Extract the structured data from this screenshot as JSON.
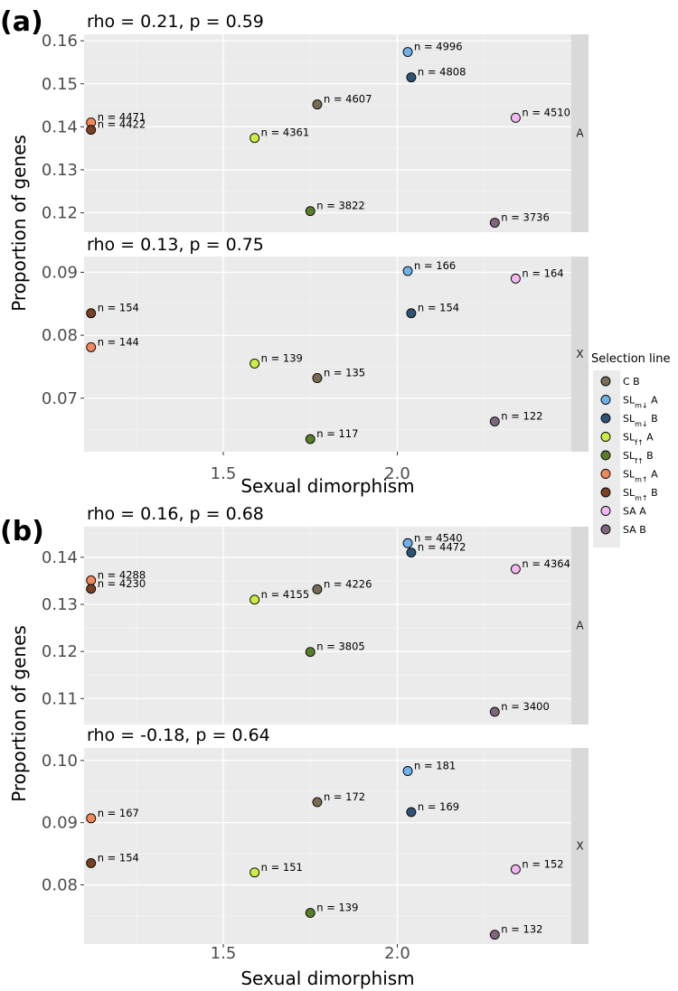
{
  "legend": {
    "title": "Selection line",
    "entries": [
      {
        "key": "CB",
        "base": "C B",
        "sub": "",
        "rest": "",
        "color": "#7b6b52"
      },
      {
        "key": "SLmdA",
        "base": "SL",
        "sub": "m↓",
        "rest": " A",
        "color": "#6fb1e8"
      },
      {
        "key": "SLmdB",
        "base": "SL",
        "sub": "m↓",
        "rest": " B",
        "color": "#2e5374"
      },
      {
        "key": "SLfuA",
        "base": "SL",
        "sub": "f↑",
        "rest": " A",
        "color": "#c9ef43"
      },
      {
        "key": "SLfuB",
        "base": "SL",
        "sub": "f↑",
        "rest": " B",
        "color": "#5a7d2a"
      },
      {
        "key": "SLmuA",
        "base": "SL",
        "sub": "m↑",
        "rest": " A",
        "color": "#f4885a"
      },
      {
        "key": "SLmuB",
        "base": "SL",
        "sub": "m↑",
        "rest": " B",
        "color": "#7a4023"
      },
      {
        "key": "SAA",
        "base": "SA A",
        "sub": "",
        "rest": "",
        "color": "#f4b6f0"
      },
      {
        "key": "SAB",
        "base": "SA B",
        "sub": "",
        "rest": "",
        "color": "#80657e"
      }
    ]
  },
  "chart_data": [
    {
      "type": "scatter",
      "label": "(a)",
      "xlabel": "Sexual dimorphism",
      "ylabel": "Proportion of genes",
      "xlim": [
        1.1,
        2.5
      ],
      "xticks": [
        1.5,
        2.0
      ],
      "xtick_labels": [
        "1.5",
        "2.0"
      ],
      "points_x": {
        "CB": 1.77,
        "SLmdA": 2.03,
        "SLmdB": 2.04,
        "SLfuA": 1.59,
        "SLfuB": 1.75,
        "SLmuA": 1.12,
        "SLmuB": 1.12,
        "SAA": 2.34,
        "SAB": 2.28
      },
      "facets": [
        {
          "strip": "A",
          "title": "rho = 0.21, p = 0.59",
          "ylim": [
            0.1155,
            0.1615
          ],
          "yticks": [
            0.12,
            0.13,
            0.14,
            0.15,
            0.16
          ],
          "ytick_labels": [
            "0.12",
            "0.13",
            "0.14",
            "0.15",
            "0.16"
          ],
          "points": [
            {
              "key": "CB",
              "y": 0.1452,
              "label": "n = 4607"
            },
            {
              "key": "SLmdA",
              "y": 0.1574,
              "label": "n = 4996"
            },
            {
              "key": "SLmdB",
              "y": 0.1515,
              "label": "n = 4808"
            },
            {
              "key": "SLfuA",
              "y": 0.1374,
              "label": "n = 4361"
            },
            {
              "key": "SLfuB",
              "y": 0.1204,
              "label": "n = 3822"
            },
            {
              "key": "SLmuA",
              "y": 0.141,
              "label": "n = 4471"
            },
            {
              "key": "SLmuB",
              "y": 0.1393,
              "label": "n = 4422"
            },
            {
              "key": "SAA",
              "y": 0.1421,
              "label": "n = 4510"
            },
            {
              "key": "SAB",
              "y": 0.1177,
              "label": "n = 3736"
            }
          ]
        },
        {
          "strip": "X",
          "title": "rho = 0.13, p = 0.75",
          "ylim": [
            0.0615,
            0.0925
          ],
          "yticks": [
            0.07,
            0.08,
            0.09
          ],
          "ytick_labels": [
            "0.07",
            "0.08",
            "0.09"
          ],
          "points": [
            {
              "key": "CB",
              "y": 0.0732,
              "label": "n = 135"
            },
            {
              "key": "SLmdA",
              "y": 0.0902,
              "label": "n = 166"
            },
            {
              "key": "SLmdB",
              "y": 0.0835,
              "label": "n = 154"
            },
            {
              "key": "SLfuA",
              "y": 0.0755,
              "label": "n = 139"
            },
            {
              "key": "SLfuB",
              "y": 0.0635,
              "label": "n = 117"
            },
            {
              "key": "SLmuA",
              "y": 0.0781,
              "label": "n = 144"
            },
            {
              "key": "SLmuB",
              "y": 0.0835,
              "label": "n = 154"
            },
            {
              "key": "SAA",
              "y": 0.089,
              "label": "n = 164"
            },
            {
              "key": "SAB",
              "y": 0.0663,
              "label": "n = 122"
            }
          ]
        }
      ]
    },
    {
      "type": "scatter",
      "label": "(b)",
      "xlabel": "Sexual dimorphism",
      "ylabel": "Proportion of genes",
      "xlim": [
        1.1,
        2.5
      ],
      "xticks": [
        1.5,
        2.0
      ],
      "xtick_labels": [
        "1.5",
        "2.0"
      ],
      "points_x": {
        "CB": 1.77,
        "SLmdA": 2.03,
        "SLmdB": 2.04,
        "SLfuA": 1.59,
        "SLfuB": 1.75,
        "SLmuA": 1.12,
        "SLmuB": 1.12,
        "SAA": 2.34,
        "SAB": 2.28
      },
      "facets": [
        {
          "strip": "A",
          "title": "rho = 0.16, p = 0.68",
          "ylim": [
            0.1045,
            0.1465
          ],
          "yticks": [
            0.11,
            0.12,
            0.13,
            0.14
          ],
          "ytick_labels": [
            "0.11",
            "0.12",
            "0.13",
            "0.14"
          ],
          "points": [
            {
              "key": "CB",
              "y": 0.1332,
              "label": "n = 4226"
            },
            {
              "key": "SLmdA",
              "y": 0.143,
              "label": "n = 4540"
            },
            {
              "key": "SLmdB",
              "y": 0.141,
              "label": "n = 4472"
            },
            {
              "key": "SLfuA",
              "y": 0.131,
              "label": "n = 4155"
            },
            {
              "key": "SLfuB",
              "y": 0.1199,
              "label": "n = 3805"
            },
            {
              "key": "SLmuA",
              "y": 0.1351,
              "label": "n = 4288"
            },
            {
              "key": "SLmuB",
              "y": 0.1333,
              "label": "n = 4230"
            },
            {
              "key": "SAA",
              "y": 0.1375,
              "label": "n = 4364"
            },
            {
              "key": "SAB",
              "y": 0.1072,
              "label": "n = 3400"
            }
          ]
        },
        {
          "strip": "X",
          "title": "rho = -0.18, p = 0.64",
          "ylim": [
            0.0705,
            0.102
          ],
          "yticks": [
            0.08,
            0.09,
            0.1
          ],
          "ytick_labels": [
            "0.08",
            "0.09",
            "0.10"
          ],
          "points": [
            {
              "key": "CB",
              "y": 0.0933,
              "label": "n = 172"
            },
            {
              "key": "SLmdA",
              "y": 0.0983,
              "label": "n = 181"
            },
            {
              "key": "SLmdB",
              "y": 0.0917,
              "label": "n = 169"
            },
            {
              "key": "SLfuA",
              "y": 0.082,
              "label": "n = 151"
            },
            {
              "key": "SLfuB",
              "y": 0.0755,
              "label": "n = 139"
            },
            {
              "key": "SLmuA",
              "y": 0.0907,
              "label": "n = 167"
            },
            {
              "key": "SLmuB",
              "y": 0.0835,
              "label": "n = 154"
            },
            {
              "key": "SAA",
              "y": 0.0825,
              "label": "n = 152"
            },
            {
              "key": "SAB",
              "y": 0.072,
              "label": "n = 132"
            }
          ]
        }
      ]
    }
  ]
}
